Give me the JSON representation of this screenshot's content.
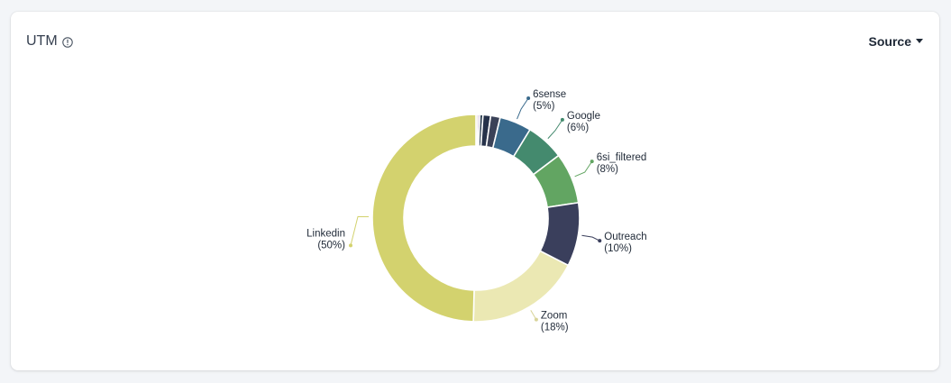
{
  "header": {
    "title": "UTM",
    "dropdown_label": "Source"
  },
  "icons": {
    "info": "info-circle-icon",
    "caret": "caret-down-icon"
  },
  "chart_data": {
    "type": "pie",
    "donut": true,
    "title": "",
    "start_angle_deg": 0,
    "slices": [
      {
        "label": "",
        "value": 0.3,
        "color": "#c8a06e"
      },
      {
        "label": "",
        "value": 0.3,
        "color": "#8e6bb0"
      },
      {
        "label": "",
        "value": 0.5,
        "color": "#2c3e50"
      },
      {
        "label": "",
        "value": 1.2,
        "color": "#26324a"
      },
      {
        "label": "",
        "value": 1.5,
        "color": "#3b4258"
      },
      {
        "label": "6sense",
        "value": 5,
        "display": "(5%)",
        "color": "#3a6a8c"
      },
      {
        "label": "Google",
        "value": 6,
        "display": "(6%)",
        "color": "#448a6e"
      },
      {
        "label": "6si_filtered",
        "value": 8,
        "display": "(8%)",
        "color": "#62a562"
      },
      {
        "label": "Outreach",
        "value": 10,
        "display": "(10%)",
        "color": "#3a3f5c"
      },
      {
        "label": "Zoom",
        "value": 18,
        "display": "(18%)",
        "color": "#ebe8b3"
      },
      {
        "label": "Linkedin",
        "value": 50,
        "display": "(50%)",
        "color": "#d3d26e"
      }
    ]
  }
}
